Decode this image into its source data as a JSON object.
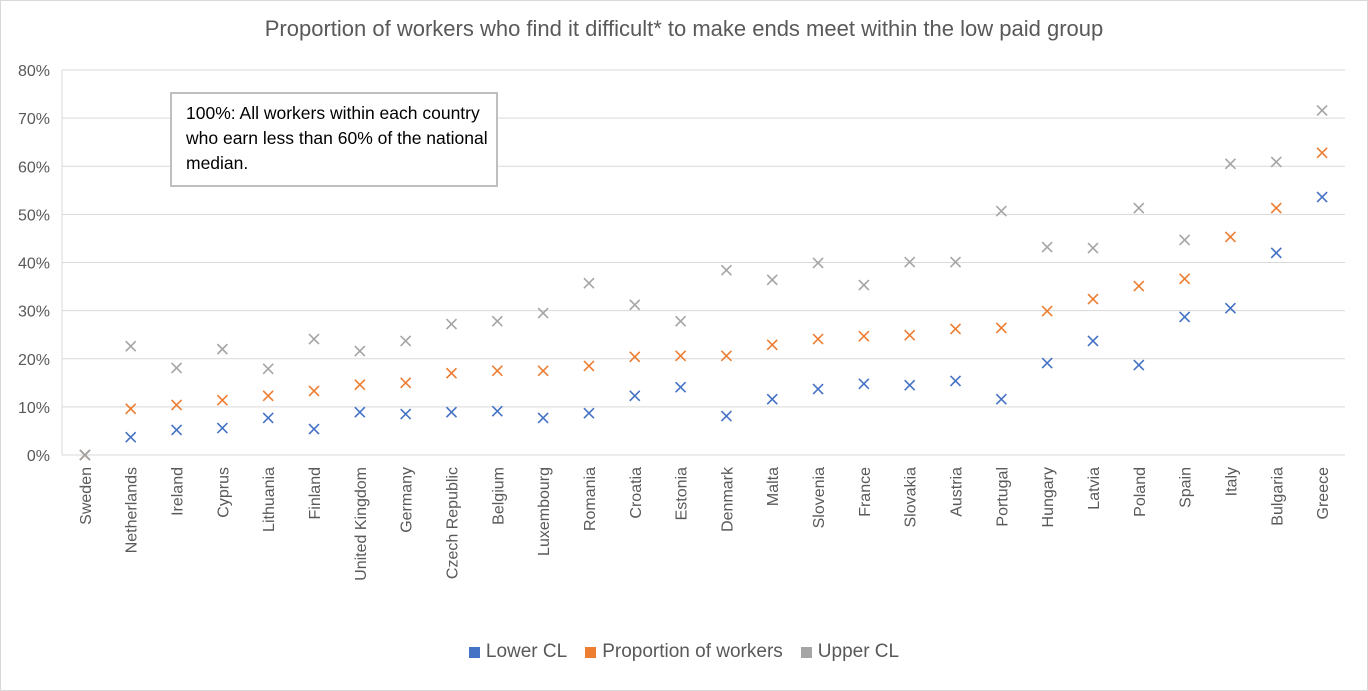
{
  "chart_data": {
    "type": "scatter",
    "title": "Proportion of workers who find it difficult* to make ends meet within the low paid group",
    "annotation": "100%: All workers within each country who earn less than 60% of the national median.",
    "xlabel": "",
    "ylabel": "",
    "ylim": [
      0,
      80
    ],
    "yticks": [
      "0%",
      "10%",
      "20%",
      "30%",
      "40%",
      "50%",
      "60%",
      "70%",
      "80%"
    ],
    "grid": true,
    "legend_position": "bottom",
    "marker": "x",
    "categories": [
      "Sweden",
      "Netherlands",
      "Ireland",
      "Cyprus",
      "Lithuania",
      "Finland",
      "United Kingdom",
      "Germany",
      "Czech Republic",
      "Belgium",
      "Luxembourg",
      "Romania",
      "Croatia",
      "Estonia",
      "Denmark",
      "Malta",
      "Slovenia",
      "France",
      "Slovakia",
      "Austria",
      "Portugal",
      "Hungary",
      "Latvia",
      "Poland",
      "Spain",
      "Italy",
      "Bulgaria",
      "Greece"
    ],
    "series": [
      {
        "name": "Lower CL",
        "color": "#4472C4",
        "values": [
          0,
          3.7,
          5.2,
          5.6,
          7.7,
          5.4,
          8.9,
          8.5,
          8.9,
          9.1,
          7.7,
          8.7,
          12.3,
          14.1,
          8.1,
          11.6,
          13.7,
          14.8,
          14.5,
          15.4,
          11.6,
          19.1,
          23.7,
          18.7,
          28.7,
          30.5,
          42.0,
          53.6
        ]
      },
      {
        "name": "Proportion of workers",
        "color": "#ED7D31",
        "values": [
          0,
          9.6,
          10.4,
          11.4,
          12.3,
          13.3,
          14.6,
          15.0,
          17.0,
          17.5,
          17.5,
          18.5,
          20.4,
          20.6,
          20.6,
          22.9,
          24.1,
          24.7,
          24.9,
          26.2,
          26.4,
          29.9,
          32.4,
          35.1,
          36.6,
          45.3,
          51.3,
          62.8
        ]
      },
      {
        "name": "Upper CL",
        "color": "#A5A5A5",
        "values": [
          0,
          22.6,
          18.1,
          22.0,
          17.9,
          24.1,
          21.6,
          23.7,
          27.2,
          27.8,
          29.5,
          35.7,
          31.2,
          27.8,
          38.4,
          36.4,
          39.9,
          35.3,
          40.1,
          40.1,
          50.7,
          43.2,
          43.0,
          51.3,
          44.7,
          60.5,
          60.9,
          71.6
        ]
      }
    ]
  }
}
